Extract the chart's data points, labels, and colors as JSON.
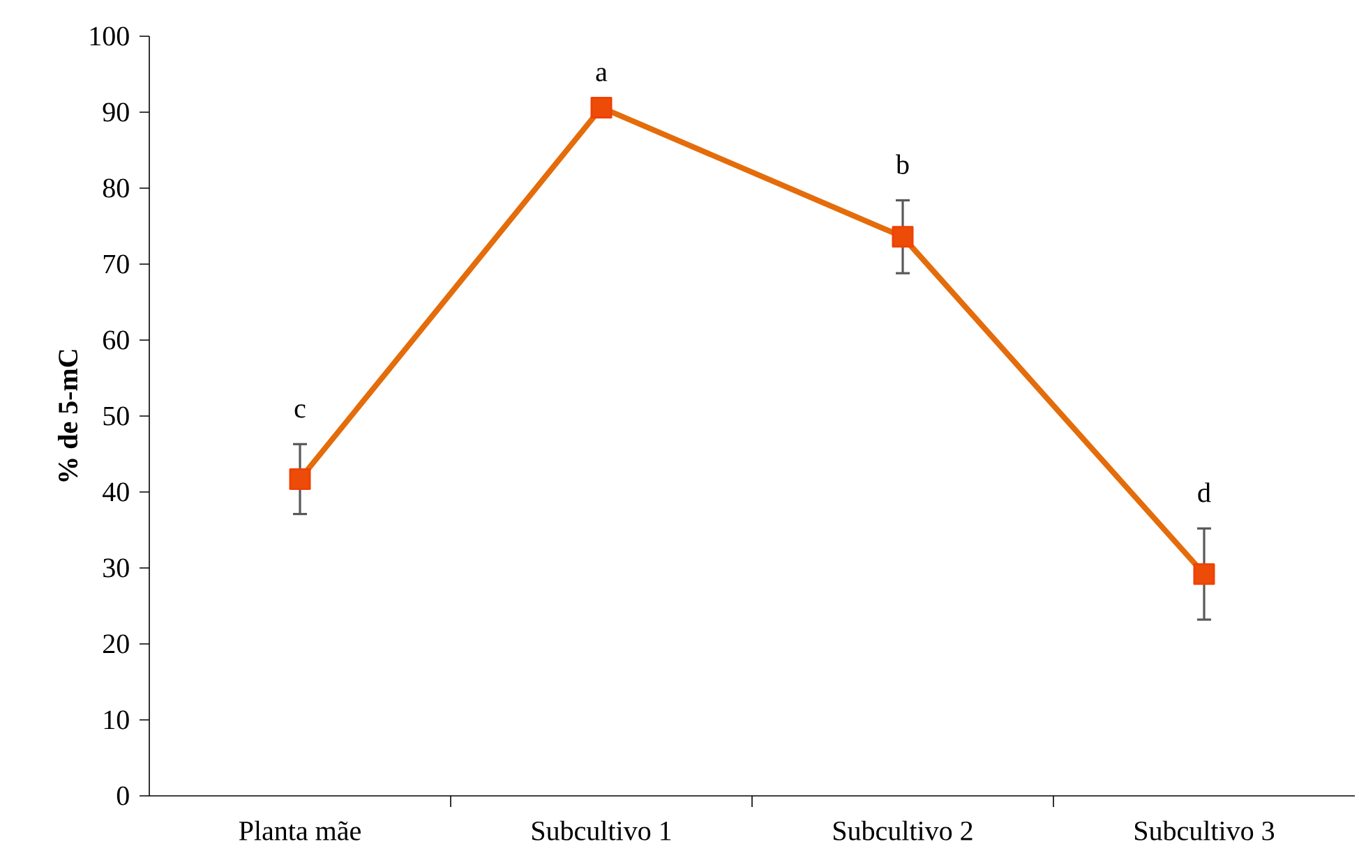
{
  "chart_data": {
    "type": "line",
    "ylabel": "% de 5-mC",
    "categories": [
      "Planta mãe",
      "Subcultivo 1",
      "Subcultivo 2",
      "Subcultivo 3"
    ],
    "series": [
      {
        "color": "#e46c0a",
        "values": [
          41.7,
          90.6,
          73.6,
          29.2
        ],
        "errors": [
          4.6,
          null,
          4.8,
          6.0
        ]
      }
    ],
    "ylim": [
      0,
      100
    ],
    "yticks": [
      0,
      10,
      20,
      30,
      40,
      50,
      60,
      70,
      80,
      90,
      100
    ],
    "marker": "square",
    "line_style": "solid",
    "grid": false,
    "annotations": [
      "c",
      "a",
      "b",
      "d"
    ]
  }
}
